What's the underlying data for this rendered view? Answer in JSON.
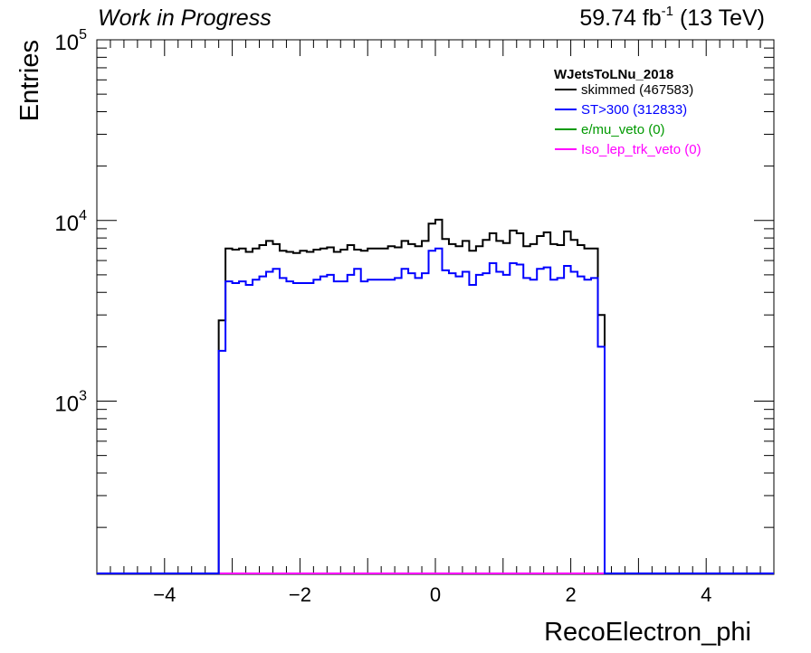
{
  "header": {
    "left_label": "Work in Progress",
    "lumi_value": "59.74 fb",
    "lumi_exp": "-1",
    "lumi_energy": " (13 TeV)"
  },
  "chart_data": {
    "type": "histogram",
    "xlabel": "RecoElectron_phi",
    "ylabel": "Entries",
    "xlim": [
      -5.0,
      5.0
    ],
    "ylim": [
      110,
      100000
    ],
    "y_log": true,
    "x_tick_labels": [
      "−4",
      "−2",
      "0",
      "2",
      "4"
    ],
    "x_tick_values": [
      -4,
      -2,
      0,
      2,
      4
    ],
    "y_tick_labels": [
      {
        "base": "10",
        "exp": "3",
        "value": 1000
      },
      {
        "base": "10",
        "exp": "4",
        "value": 10000
      },
      {
        "base": "10",
        "exp": "5",
        "value": 100000
      }
    ],
    "bin_edges_start": -3.2,
    "bin_width": 0.1,
    "legend": {
      "title": "WJetsToLNu_2018",
      "entries": [
        {
          "label": "skimmed (467583)",
          "color": "#000000"
        },
        {
          "label": "ST>300 (312833)",
          "color": "#0000ff"
        },
        {
          "label": "e/mu_veto (0)",
          "color": "#009900"
        },
        {
          "label": "Iso_lep_trk_veto (0)",
          "color": "#ff00ff"
        }
      ]
    },
    "series": [
      {
        "name": "skimmed (467583)",
        "color": "#000000",
        "values": [
          2800,
          7000,
          6900,
          7000,
          6700,
          7000,
          7300,
          7700,
          7400,
          6800,
          6700,
          6600,
          6800,
          6700,
          6900,
          7000,
          7100,
          6700,
          6900,
          7300,
          6900,
          6800,
          7000,
          7000,
          7000,
          7200,
          7100,
          7700,
          7400,
          7200,
          7700,
          9600,
          10100,
          7900,
          7400,
          7200,
          7700,
          6800,
          7200,
          7800,
          8500,
          7700,
          7500,
          8800,
          8500,
          7200,
          7400,
          8200,
          8600,
          7400,
          7300,
          8700,
          7800,
          7300,
          7000,
          7000,
          3000
        ]
      },
      {
        "name": "ST>300 (312833)",
        "color": "#0000ff",
        "values": [
          1900,
          4600,
          4500,
          4600,
          4400,
          4700,
          4900,
          5200,
          5400,
          4800,
          4600,
          4500,
          4500,
          4500,
          4700,
          4900,
          5000,
          4600,
          4600,
          5000,
          5400,
          4600,
          4700,
          4700,
          4700,
          4700,
          4800,
          5400,
          5100,
          4800,
          5100,
          6800,
          7000,
          5300,
          5100,
          4900,
          5200,
          4400,
          5000,
          5100,
          5800,
          5200,
          5000,
          5800,
          5700,
          4800,
          4700,
          5400,
          5500,
          4700,
          4800,
          5600,
          5200,
          4900,
          4700,
          4800,
          2000
        ]
      },
      {
        "name": "e/mu_veto (0)",
        "color": "#009900",
        "values": []
      },
      {
        "name": "Iso_lep_trk_veto (0)",
        "color": "#ff00ff",
        "values": []
      }
    ]
  }
}
